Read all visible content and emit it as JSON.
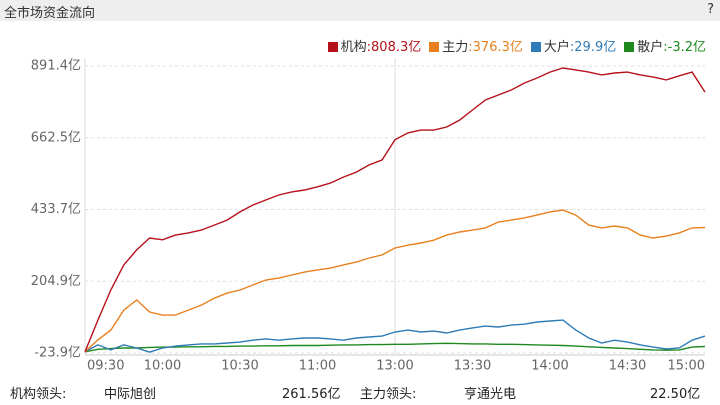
{
  "header": {
    "title": "全市场资金流向",
    "help": "?"
  },
  "chart_data": {
    "type": "line",
    "categories": [
      "09:30",
      null,
      null,
      null,
      null,
      null,
      "10:00",
      null,
      null,
      null,
      null,
      null,
      "10:30",
      null,
      null,
      null,
      null,
      null,
      "11:00",
      null,
      null,
      null,
      null,
      null,
      "13:00",
      null,
      null,
      null,
      null,
      null,
      "13:30",
      null,
      null,
      null,
      null,
      null,
      "14:00",
      null,
      null,
      null,
      null,
      null,
      "14:30",
      null,
      null,
      null,
      null,
      null,
      "15:00"
    ],
    "series": [
      {
        "name": "机构",
        "legend_value": ":808.3亿",
        "color": "#b5121b",
        "values": [
          -20,
          81,
          177,
          257,
          305,
          343,
          337,
          352,
          359,
          368,
          384,
          400,
          426,
          448,
          464,
          480,
          490,
          496,
          506,
          518,
          537,
          553,
          576,
          592,
          656,
          678,
          687,
          687,
          697,
          719,
          751,
          783,
          799,
          815,
          837,
          853,
          872,
          885,
          879,
          872,
          863,
          869,
          872,
          863,
          856,
          847,
          860,
          872,
          808.3
        ]
      },
      {
        "name": "主力",
        "legend_value": ":376.3亿",
        "color": "#e8801e",
        "values": [
          -20,
          18,
          49,
          113,
          145,
          107,
          97,
          97,
          113,
          129,
          151,
          167,
          177,
          193,
          209,
          215,
          225,
          234,
          241,
          247,
          257,
          266,
          279,
          289,
          311,
          320,
          327,
          336,
          352,
          362,
          368,
          375,
          394,
          400,
          407,
          416,
          426,
          432,
          416,
          384,
          375,
          381,
          375,
          352,
          343,
          349,
          359,
          375,
          376.3
        ]
      },
      {
        "name": "大户",
        "legend_value": ":29.9亿",
        "color": "#2f7bb5",
        "values": [
          -20,
          2,
          -14,
          2,
          -8,
          -21,
          -8,
          -2,
          2,
          5,
          5,
          8,
          11,
          17,
          21,
          17,
          21,
          24,
          24,
          21,
          17,
          24,
          27,
          30,
          43,
          49,
          43,
          46,
          40,
          49,
          56,
          62,
          59,
          65,
          68,
          75,
          78,
          81,
          49,
          24,
          8,
          17,
          11,
          2,
          -5,
          -11,
          -8,
          17,
          29.9
        ]
      },
      {
        "name": "散户",
        "legend_value": ":-3.2亿",
        "color": "#1e8a1e",
        "values": [
          -20,
          -12,
          -10,
          -8,
          -8,
          -6,
          -5,
          -5,
          -4,
          -4,
          -3,
          -3,
          -2,
          -2,
          -1,
          -1,
          0,
          0,
          0,
          1,
          2,
          2,
          3,
          3,
          4,
          4,
          5,
          6,
          7,
          6,
          5,
          5,
          4,
          4,
          3,
          2,
          1,
          0,
          -2,
          -4,
          -6,
          -8,
          -10,
          -12,
          -14,
          -15,
          -14,
          -5,
          -3.2
        ]
      }
    ],
    "ylim": [
      -23.9,
      891.4
    ],
    "yticks": [
      {
        "value": -23.9,
        "label": "-23.9亿"
      },
      {
        "value": 204.9,
        "label": "204.9亿"
      },
      {
        "value": 433.7,
        "label": "433.7亿"
      },
      {
        "value": 662.5,
        "label": "662.5亿"
      },
      {
        "value": 891.4,
        "label": "891.4亿"
      }
    ],
    "grid": true
  },
  "footer": {
    "lead1_label": "机构领头:",
    "lead1_name": "中际旭创",
    "lead1_value": "261.56亿",
    "lead2_label": "主力领头:",
    "lead2_name": "亨通光电",
    "lead2_value": "22.50亿"
  }
}
